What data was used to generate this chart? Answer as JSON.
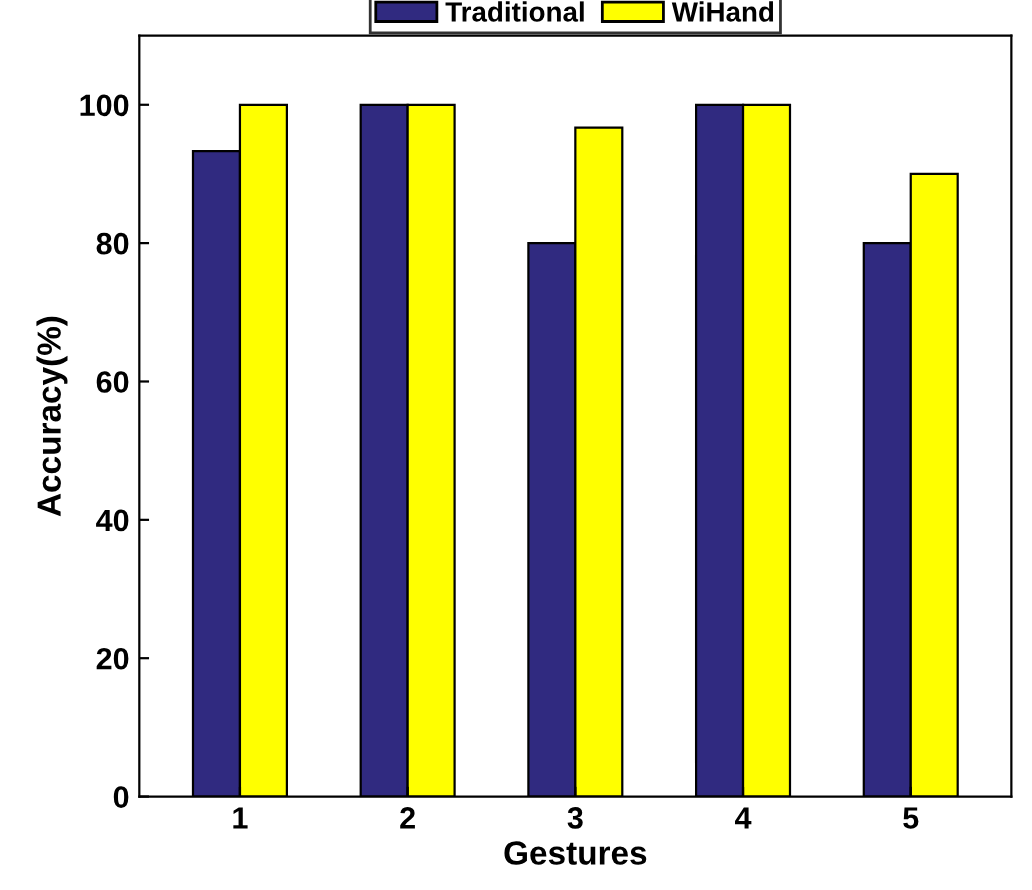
{
  "chart_data": {
    "type": "bar",
    "xlabel": "Gestures",
    "ylabel": "Accuracy(%)",
    "categories": [
      "1",
      "2",
      "3",
      "4",
      "5"
    ],
    "series": [
      {
        "name": "Traditional",
        "color": "#302a80",
        "values": [
          93.3,
          100,
          80,
          100,
          80
        ]
      },
      {
        "name": "WiHand",
        "color": "#ffff00",
        "values": [
          100,
          100,
          96.7,
          100,
          90
        ]
      }
    ],
    "ylim": [
      0,
      110
    ],
    "yticks": [
      0,
      20,
      40,
      60,
      80,
      100
    ],
    "grid": false,
    "legend": "top"
  }
}
